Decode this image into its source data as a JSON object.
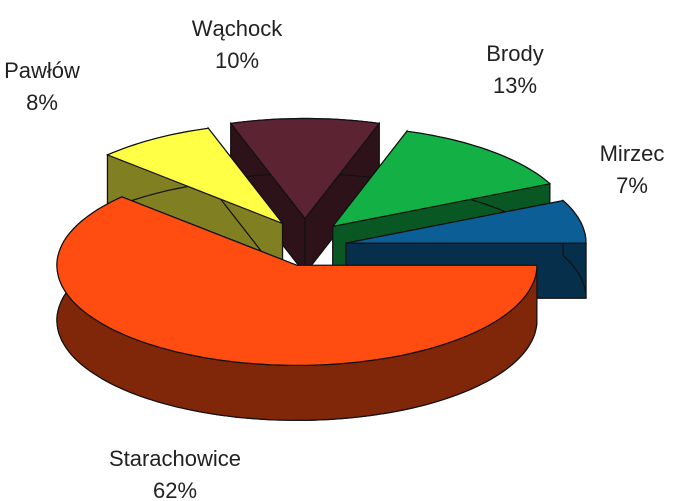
{
  "chart_data": {
    "type": "pie",
    "categories": [
      "Wąchock",
      "Brody",
      "Mirzec",
      "Starachowice",
      "Pawłów"
    ],
    "values": [
      10,
      13,
      7,
      62,
      8
    ],
    "value_labels": [
      "10%",
      "13%",
      "7%",
      "62%",
      "8%"
    ],
    "colors": [
      "#5c2332",
      "#12b045",
      "#0b5e96",
      "#ff4d12",
      "#ffff45"
    ],
    "three_d": true,
    "exploded": true
  }
}
